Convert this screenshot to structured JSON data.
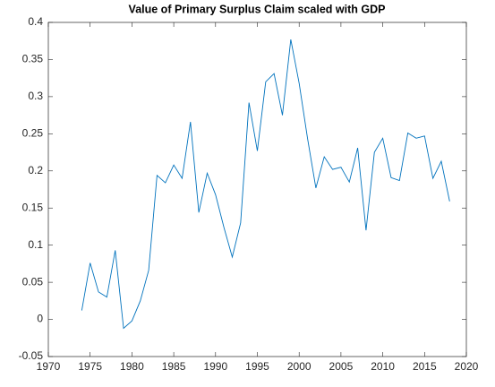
{
  "chart_data": {
    "type": "line",
    "title": "Value of Primary Surplus Claim scaled with GDP",
    "x": [
      1974,
      1975,
      1976,
      1977,
      1978,
      1979,
      1980,
      1981,
      1982,
      1983,
      1984,
      1985,
      1986,
      1987,
      1988,
      1989,
      1990,
      1991,
      1992,
      1993,
      1994,
      1995,
      1996,
      1997,
      1998,
      1999,
      2000,
      2001,
      2002,
      2003,
      2004,
      2005,
      2006,
      2007,
      2008,
      2009,
      2010,
      2011,
      2012,
      2013,
      2014,
      2015,
      2016,
      2017,
      2018
    ],
    "series": [
      {
        "color": "#0072bd",
        "values": [
          0.012,
          0.076,
          0.037,
          0.03,
          0.093,
          -0.012,
          -0.002,
          0.025,
          0.066,
          0.194,
          0.184,
          0.208,
          0.19,
          0.266,
          0.144,
          0.197,
          0.168,
          0.124,
          0.084,
          0.13,
          0.292,
          0.227,
          0.32,
          0.331,
          0.275,
          0.377,
          0.318,
          0.244,
          0.177,
          0.219,
          0.202,
          0.205,
          0.185,
          0.231,
          0.12,
          0.225,
          0.244,
          0.191,
          0.187,
          0.251,
          0.244,
          0.247,
          0.19,
          0.213,
          0.159
        ]
      }
    ],
    "xlim": [
      1970,
      2020
    ],
    "xticks": [
      1970,
      1975,
      1980,
      1985,
      1990,
      1995,
      2000,
      2005,
      2010,
      2015,
      2020
    ],
    "ylim": [
      -0.05,
      0.4
    ],
    "yticks": [
      -0.05,
      0,
      0.05,
      0.1,
      0.15,
      0.2,
      0.25,
      0.3,
      0.35,
      0.4
    ]
  }
}
